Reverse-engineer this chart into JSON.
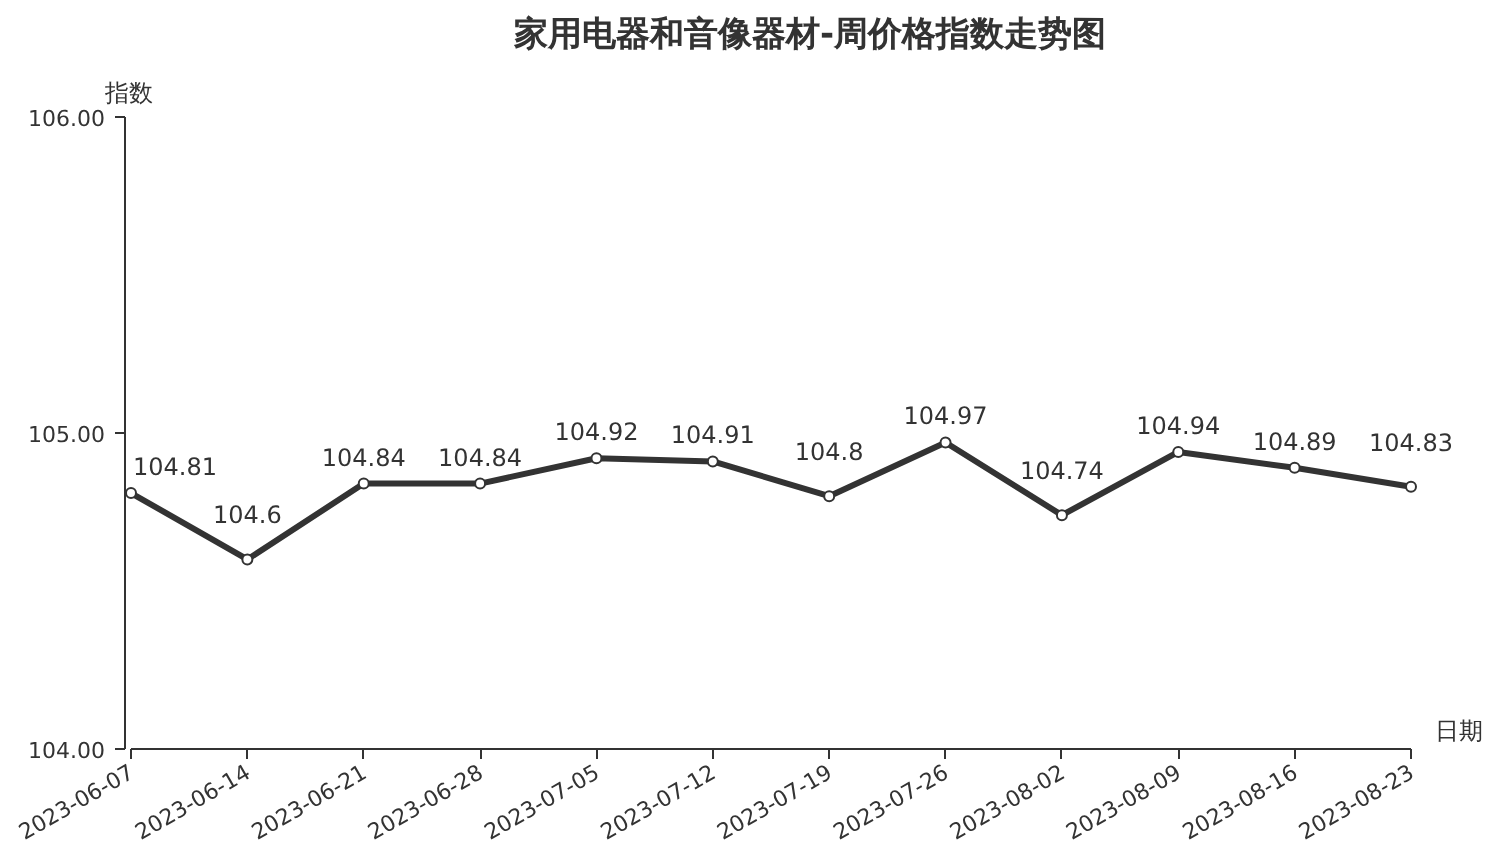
{
  "chart_data": {
    "type": "line",
    "title": "家用电器和音像器材-周价格指数走势图",
    "xlabel": "日期",
    "ylabel": "指数",
    "categories": [
      "2023-06-07",
      "2023-06-14",
      "2023-06-21",
      "2023-06-28",
      "2023-07-05",
      "2023-07-12",
      "2023-07-19",
      "2023-07-26",
      "2023-08-02",
      "2023-08-09",
      "2023-08-16",
      "2023-08-23"
    ],
    "series": [
      {
        "color": "#333333",
        "values": [
          104.81,
          104.6,
          104.84,
          104.84,
          104.92,
          104.91,
          104.8,
          104.97,
          104.74,
          104.94,
          104.89,
          104.83
        ]
      }
    ],
    "ylim": [
      104,
      106
    ],
    "yticks": [
      {
        "value": 104,
        "label": "104.00"
      },
      {
        "value": 105,
        "label": "105.00"
      },
      {
        "value": 106,
        "label": "106.00"
      }
    ],
    "data_labels": true,
    "marker": "circle",
    "line_style": "solid",
    "grid": false
  }
}
